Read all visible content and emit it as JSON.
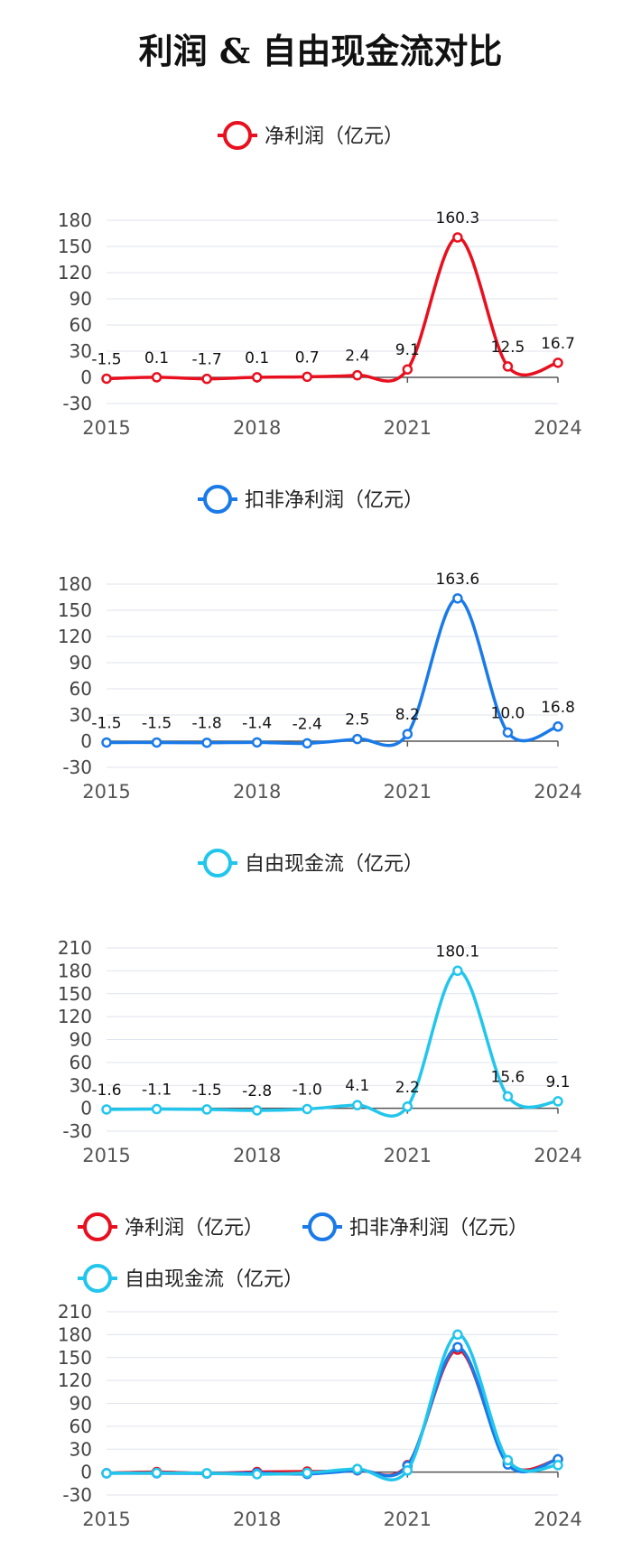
{
  "title": "利润 & 自由现金流对比",
  "chart_data": [
    {
      "type": "line",
      "x": [
        2015,
        2016,
        2017,
        2018,
        2019,
        2020,
        2021,
        2022,
        2023,
        2024
      ],
      "xticks": [
        "2015",
        "2018",
        "2021",
        "2024"
      ],
      "yticks": [
        -30,
        0,
        30,
        60,
        90,
        120,
        150,
        180
      ],
      "ylim": [
        -30,
        180
      ],
      "grid": true,
      "legend": "top-center",
      "series": [
        {
          "name": "净利润（亿元）",
          "color": "#e8101f",
          "values": [
            -1.5,
            0.1,
            -1.7,
            0.1,
            0.7,
            2.4,
            9.1,
            160.3,
            12.5,
            16.7
          ],
          "labels": [
            "-1.5",
            "0.1",
            "-1.7",
            "0.1",
            "0.7",
            "2.4",
            "9.1",
            "160.3",
            "12.5",
            "16.7"
          ]
        }
      ]
    },
    {
      "type": "line",
      "x": [
        2015,
        2016,
        2017,
        2018,
        2019,
        2020,
        2021,
        2022,
        2023,
        2024
      ],
      "xticks": [
        "2015",
        "2018",
        "2021",
        "2024"
      ],
      "yticks": [
        -30,
        0,
        30,
        60,
        90,
        120,
        150,
        180
      ],
      "ylim": [
        -30,
        180
      ],
      "grid": true,
      "legend": "top-center",
      "series": [
        {
          "name": "扣非净利润（亿元）",
          "color": "#1a7ae8",
          "values": [
            -1.5,
            -1.5,
            -1.8,
            -1.4,
            -2.4,
            2.5,
            8.2,
            163.6,
            10.0,
            16.8
          ],
          "labels": [
            "-1.5",
            "-1.5",
            "-1.8",
            "-1.4",
            "-2.4",
            "2.5",
            "8.2",
            "163.6",
            "10.0",
            "16.8"
          ]
        }
      ]
    },
    {
      "type": "line",
      "x": [
        2015,
        2016,
        2017,
        2018,
        2019,
        2020,
        2021,
        2022,
        2023,
        2024
      ],
      "xticks": [
        "2015",
        "2018",
        "2021",
        "2024"
      ],
      "yticks": [
        -30,
        0,
        30,
        60,
        90,
        120,
        150,
        180,
        210
      ],
      "ylim": [
        -30,
        210
      ],
      "grid": true,
      "legend": "top-center",
      "series": [
        {
          "name": "自由现金流（亿元）",
          "color": "#22c6ec",
          "values": [
            -1.6,
            -1.1,
            -1.5,
            -2.8,
            -1.0,
            4.1,
            2.2,
            180.1,
            15.6,
            9.1
          ],
          "labels": [
            "-1.6",
            "-1.1",
            "-1.5",
            "-2.8",
            "-1.0",
            "4.1",
            "2.2",
            "180.1",
            "15.6",
            "9.1"
          ]
        }
      ]
    },
    {
      "type": "line",
      "x": [
        2015,
        2016,
        2017,
        2018,
        2019,
        2020,
        2021,
        2022,
        2023,
        2024
      ],
      "xticks": [
        "2015",
        "2018",
        "2021",
        "2024"
      ],
      "yticks": [
        -30,
        0,
        30,
        60,
        90,
        120,
        150,
        180,
        210
      ],
      "ylim": [
        -30,
        210
      ],
      "grid": true,
      "legend": "top-left",
      "series": [
        {
          "name": "净利润（亿元）",
          "color": "#e8101f",
          "values": [
            -1.5,
            0.1,
            -1.7,
            0.1,
            0.7,
            2.4,
            9.1,
            160.3,
            12.5,
            16.7
          ]
        },
        {
          "name": "扣非净利润（亿元）",
          "color": "#1a7ae8",
          "values": [
            -1.5,
            -1.5,
            -1.8,
            -1.4,
            -2.4,
            2.5,
            8.2,
            163.6,
            10.0,
            16.8
          ]
        },
        {
          "name": "自由现金流（亿元）",
          "color": "#22c6ec",
          "values": [
            -1.6,
            -1.1,
            -1.5,
            -2.8,
            -1.0,
            4.1,
            2.2,
            180.1,
            15.6,
            9.1
          ]
        }
      ]
    }
  ]
}
